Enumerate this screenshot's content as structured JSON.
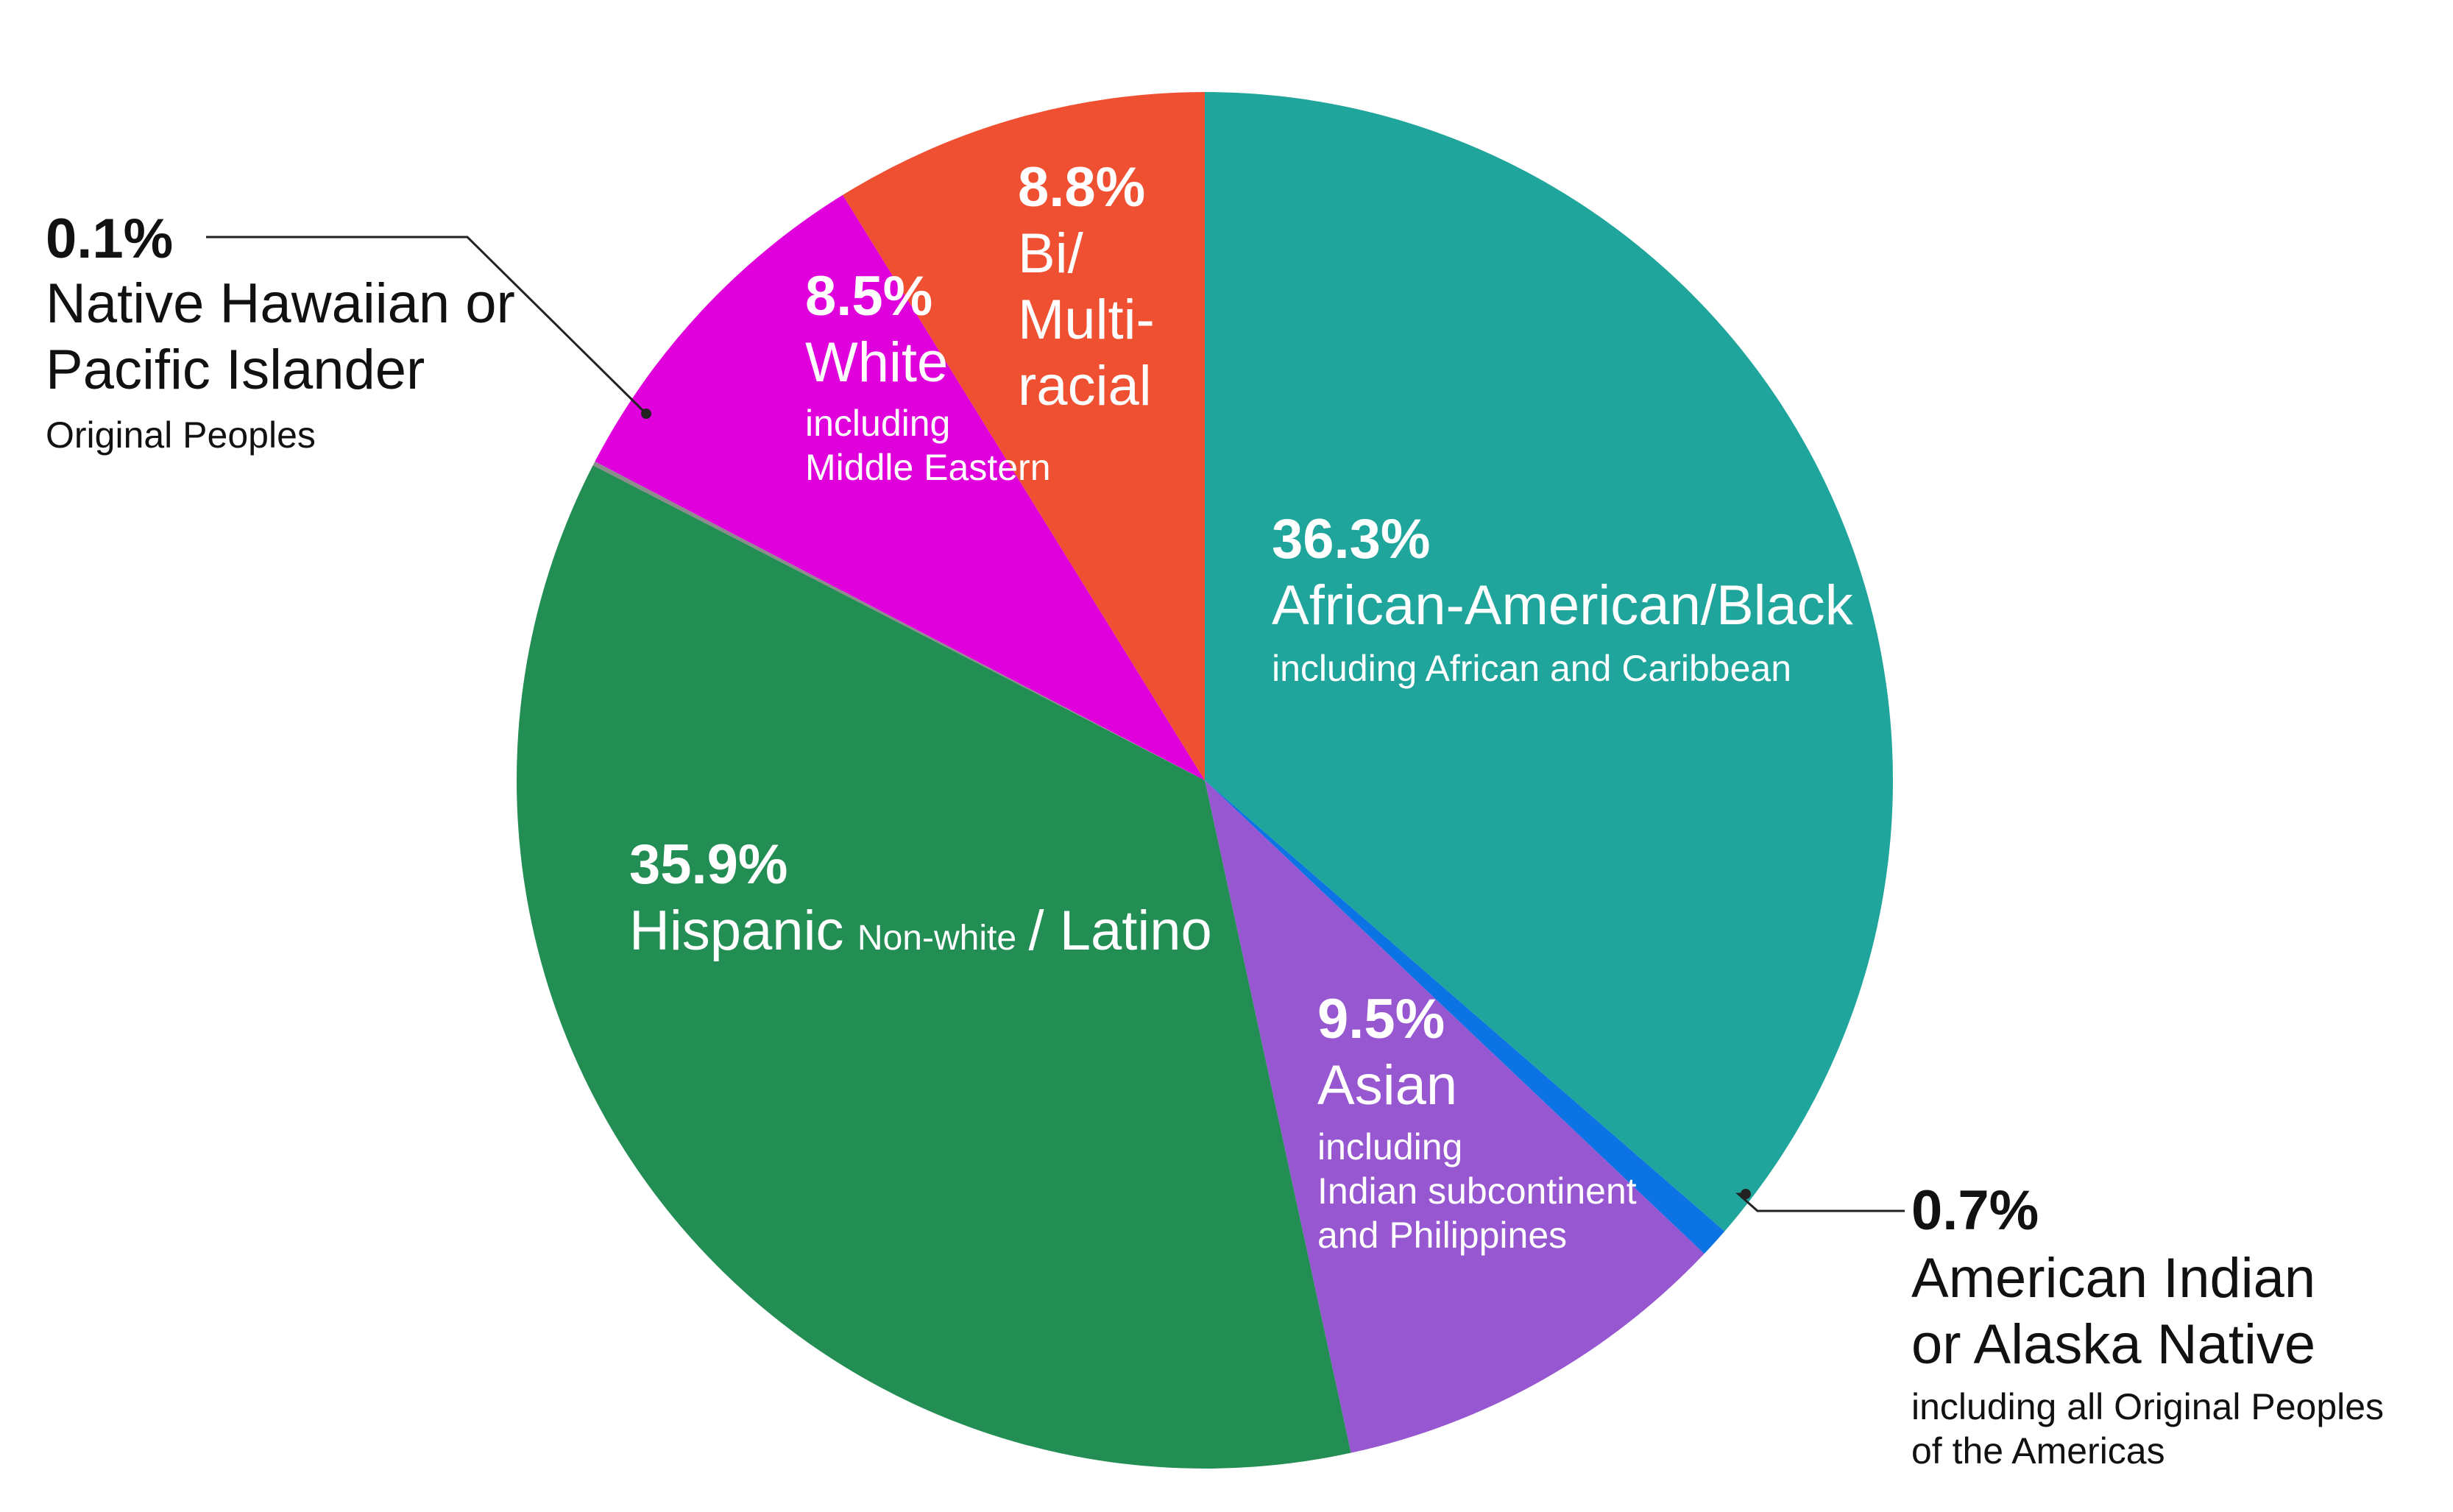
{
  "chart_data": {
    "type": "pie",
    "start_angle_deg": 0,
    "direction": "clockwise",
    "slices": [
      {
        "key": "african_american",
        "value": 36.3,
        "color": "#1fa59b",
        "pct": "36.3%",
        "name": "African-American/Black",
        "sub": "including African and Caribbean"
      },
      {
        "key": "american_indian",
        "value": 0.7,
        "color": "#0b73e3",
        "pct": "0.7%",
        "name_lines": [
          "American Indian",
          "or Alaska Native"
        ],
        "sub_lines": [
          "including all Original Peoples",
          "of the Americas"
        ]
      },
      {
        "key": "asian",
        "value": 9.5,
        "color": "#9657d0",
        "pct": "9.5%",
        "name": "Asian",
        "sub_lines": [
          "including",
          "Indian subcontinent",
          "and Philippines"
        ]
      },
      {
        "key": "hispanic",
        "value": 35.9,
        "color": "#238e54",
        "pct": "35.9%",
        "name_a": "Hispanic",
        "name_small": "Non-white",
        "name_b": "/ Latino"
      },
      {
        "key": "native_hawaiian",
        "value": 0.1,
        "color": "#8c8c8c",
        "pct": "0.1%",
        "name_lines": [
          "Native Hawaiian or",
          "Pacific Islander"
        ],
        "sub": "Original Peoples"
      },
      {
        "key": "white",
        "value": 8.5,
        "color": "#e000dc",
        "pct": "8.5%",
        "name": "White",
        "sub_lines": [
          "including",
          "Middle Eastern"
        ]
      },
      {
        "key": "multiracial",
        "value": 8.8,
        "color": "#f05032",
        "pct": "8.8%",
        "name_lines": [
          "Bi/",
          "Multi-",
          "racial"
        ]
      }
    ]
  }
}
